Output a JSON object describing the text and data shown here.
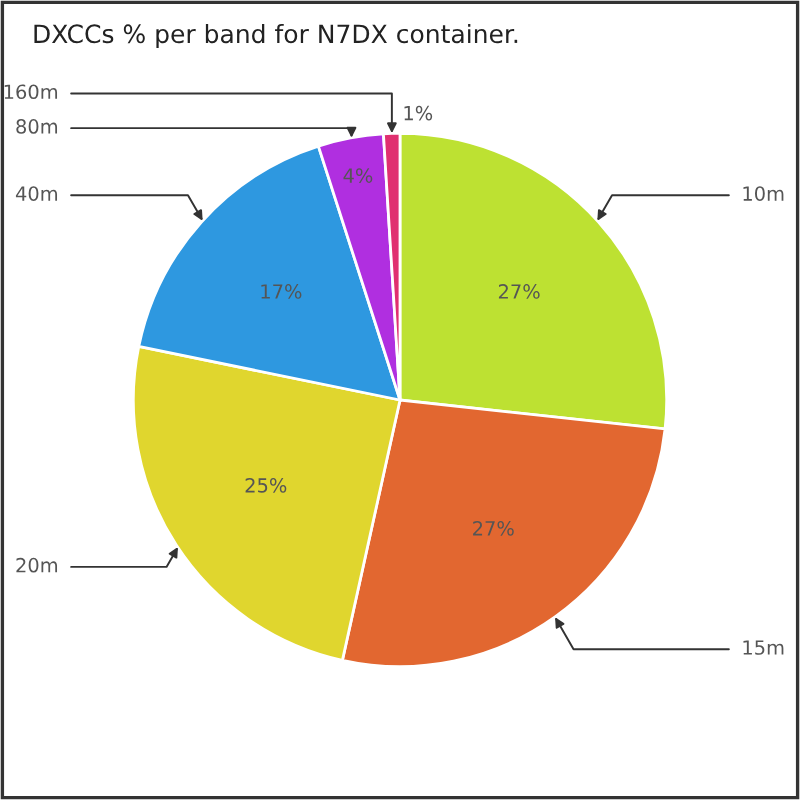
{
  "chart_data": {
    "type": "pie",
    "title": "DXCCs % per band for N7DX container.",
    "categories": [
      "10m",
      "15m",
      "20m",
      "40m",
      "80m",
      "160m"
    ],
    "values": [
      27,
      27,
      25,
      17,
      4,
      1
    ],
    "colors": [
      "#bde132",
      "#e26730",
      "#e0d62e",
      "#2e98e0",
      "#b02fe0",
      "#e03070"
    ],
    "value_labels": [
      "27%",
      "27%",
      "25%",
      "17%",
      "4%",
      "1%"
    ],
    "legend": false
  }
}
